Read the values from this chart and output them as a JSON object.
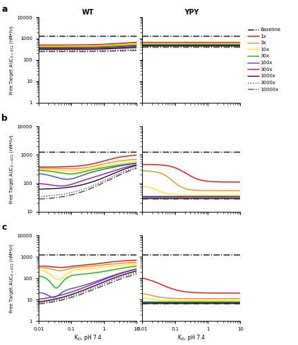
{
  "title_wt": "WT",
  "title_ypy": "YPY",
  "row_labels": [
    "a",
    "b",
    "c"
  ],
  "baseline_value": 1300,
  "line_specs": [
    [
      "baseline",
      "black",
      "-.",
      1.0
    ],
    [
      "1x",
      "#ff0000",
      "-",
      1.0
    ],
    [
      "3x",
      "#ff8c00",
      "-",
      1.0
    ],
    [
      "10x",
      "#ffee00",
      "-",
      1.0
    ],
    [
      "30x",
      "#00bb00",
      "-",
      1.0
    ],
    [
      "100x",
      "#3344ff",
      "-",
      1.0
    ],
    [
      "300x",
      "#bb00bb",
      "-",
      1.0
    ],
    [
      "1000x",
      "#111111",
      "-",
      1.0
    ],
    [
      "3000x",
      "#444444",
      ":",
      1.0
    ],
    [
      "10000x",
      "#444444",
      "-.",
      1.0
    ]
  ],
  "legend_specs": [
    [
      "Baseline",
      "black",
      "-.",
      1.0
    ],
    [
      "1x",
      "#ff0000",
      "-",
      1.0
    ],
    [
      "3x",
      "#ff8c00",
      "-",
      1.0
    ],
    [
      "10x",
      "#ffee00",
      "-",
      1.0
    ],
    [
      "30x",
      "#00bb00",
      "-",
      1.0
    ],
    [
      "100x",
      "#3344ff",
      "-",
      1.0
    ],
    [
      "300x",
      "#bb00bb",
      "-",
      1.0
    ],
    [
      "1000x",
      "#111111",
      "-",
      1.0
    ],
    [
      "3000x",
      "#444444",
      ":",
      1.0
    ],
    [
      "10000x",
      "#444444",
      "-.",
      1.0
    ]
  ]
}
